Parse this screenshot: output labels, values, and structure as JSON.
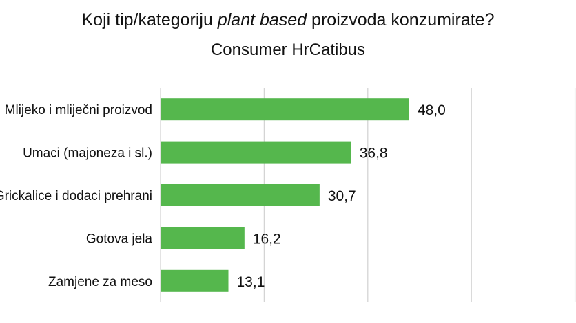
{
  "title": {
    "prefix": "Koji tip/kategoriju ",
    "emphasis": "plant based",
    "suffix": " proizvoda konzumirate?"
  },
  "subtitle": "Consumer HrCatibus",
  "chart_data": {
    "type": "bar",
    "orientation": "horizontal",
    "categories": [
      "Mlijeko i mliječni proizvod",
      "Umaci (majoneza i sl.)",
      "Grickalice i dodaci prehrani",
      "Gotova jela",
      "Zamjene za meso"
    ],
    "values": [
      48.0,
      36.8,
      30.7,
      16.2,
      13.1
    ],
    "value_labels": [
      "48,0",
      "36,8",
      "30,7",
      "16,2",
      "13,1"
    ],
    "xlim": [
      0,
      100
    ],
    "x_gridlines": [
      0,
      20,
      40,
      60,
      80,
      100
    ],
    "grid": true,
    "legend": "none",
    "bar_color": "#55b74d",
    "grid_color": "#d4d4d4"
  }
}
